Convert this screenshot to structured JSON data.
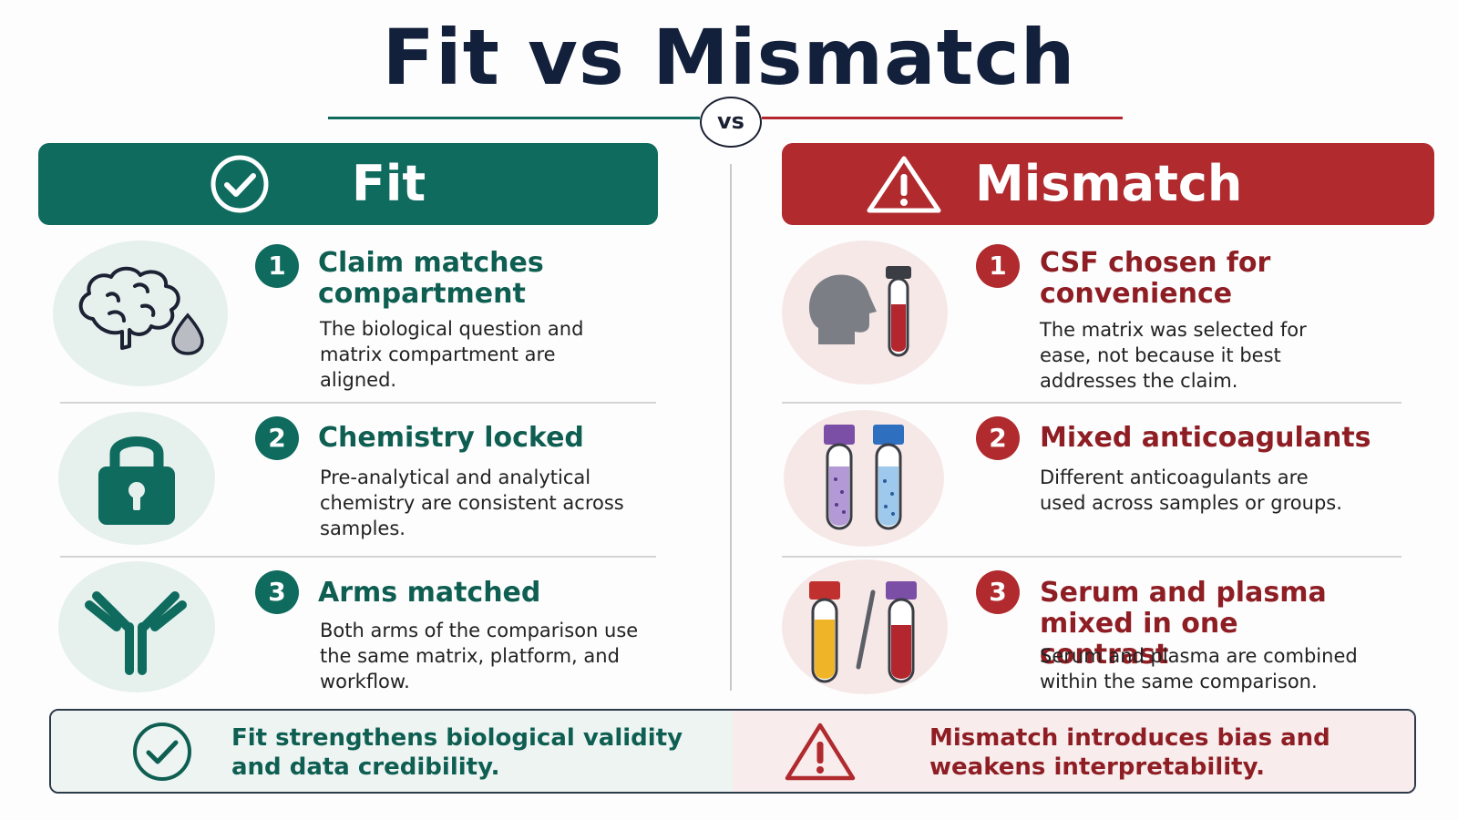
{
  "title": "Fit vs Mismatch",
  "vs_label": "vs",
  "fit": {
    "banner_label": "Fit",
    "banner_icon": "check-circle-icon",
    "color": "#0e6b5e",
    "items": [
      {
        "number": "1",
        "title": "Claim matches compartment",
        "description": "The biological question and matrix compartment are aligned.",
        "icon": "brain-droplet-icon"
      },
      {
        "number": "2",
        "title": "Chemistry locked",
        "description": "Pre-analytical and analytical chemistry are consistent across samples.",
        "icon": "padlock-icon"
      },
      {
        "number": "3",
        "title": "Arms matched",
        "description": "Both arms of the comparison use the same matrix, platform, and workflow.",
        "icon": "antibody-icon"
      }
    ]
  },
  "mismatch": {
    "banner_label": "Mismatch",
    "banner_icon": "warning-triangle-icon",
    "color": "#b02a2e",
    "items": [
      {
        "number": "1",
        "title": "CSF chosen for convenience",
        "description": "The matrix was selected for ease, not because it best addresses the claim.",
        "icon": "head-tube-icon"
      },
      {
        "number": "2",
        "title": "Mixed anticoagulants",
        "description": "Different anticoagulants are used across samples or groups.",
        "icon": "two-tubes-icon"
      },
      {
        "number": "3",
        "title": "Serum and plasma mixed in one contrast",
        "description": "Serum and plasma are combined within the same comparison.",
        "icon": "serum-plasma-tubes-icon"
      }
    ]
  },
  "footer": {
    "fit_text": "Fit strengthens biological validity and data credibility.",
    "mismatch_text": "Mismatch introduces bias and weakens interpretability."
  }
}
